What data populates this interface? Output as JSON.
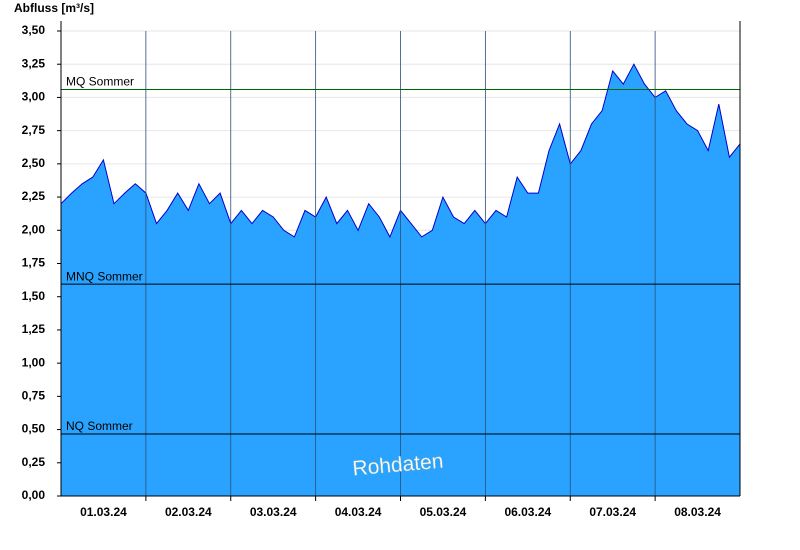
{
  "chart_data": {
    "type": "area",
    "ylabel": "Abfluss [m³/s]",
    "annotation": "Rohdaten",
    "x": [
      0,
      3,
      6,
      9,
      12,
      15,
      18,
      21,
      24,
      27,
      30,
      33,
      36,
      39,
      42,
      45,
      48,
      51,
      54,
      57,
      60,
      63,
      66,
      69,
      72,
      75,
      78,
      81,
      84,
      87,
      90,
      93,
      96,
      99,
      102,
      105,
      108,
      111,
      114,
      117,
      120,
      123,
      126,
      129,
      132,
      135,
      138,
      141,
      144,
      147,
      150,
      153,
      156,
      159,
      162,
      165,
      168,
      171,
      174,
      177,
      180,
      183,
      186,
      189,
      192
    ],
    "series": [
      {
        "name": "Abfluss",
        "color": "#29a3ff",
        "line_color": "#0000cc",
        "values": [
          2.2,
          2.28,
          2.35,
          2.4,
          2.53,
          2.2,
          2.28,
          2.35,
          2.28,
          2.05,
          2.15,
          2.28,
          2.15,
          2.35,
          2.2,
          2.28,
          2.05,
          2.15,
          2.05,
          2.15,
          2.1,
          2.0,
          1.95,
          2.15,
          2.1,
          2.25,
          2.05,
          2.15,
          2.0,
          2.2,
          2.1,
          1.95,
          2.15,
          2.05,
          1.95,
          2.0,
          2.25,
          2.1,
          2.05,
          2.15,
          2.05,
          2.15,
          2.1,
          2.4,
          2.28,
          2.28,
          2.6,
          2.8,
          2.5,
          2.6,
          2.8,
          2.9,
          3.2,
          3.1,
          3.25,
          3.1,
          3.0,
          3.05,
          2.9,
          2.8,
          2.75,
          2.6,
          2.95,
          2.55,
          2.65
        ]
      }
    ],
    "reference_lines": [
      {
        "label": "MQ Sommer",
        "value": 3.06,
        "color": "#006400"
      },
      {
        "label": "MNQ Sommer",
        "value": 1.595,
        "color": "#000000"
      },
      {
        "label": "NQ Sommer",
        "value": 0.467,
        "color": "#000000"
      }
    ],
    "xlim": [
      0,
      192
    ],
    "xticks": [
      {
        "value": 0,
        "label": "01.03.24"
      },
      {
        "value": 24,
        "label": "02.03.24"
      },
      {
        "value": 48,
        "label": "03.03.24"
      },
      {
        "value": 72,
        "label": "04.03.24"
      },
      {
        "value": 96,
        "label": "05.03.24"
      },
      {
        "value": 120,
        "label": "06.03.24"
      },
      {
        "value": 144,
        "label": "07.03.24"
      },
      {
        "value": 168,
        "label": "08.03.24"
      }
    ],
    "ylim": [
      0,
      3.5
    ],
    "yticks": [
      {
        "value": 0,
        "label": "0,00"
      },
      {
        "value": 0.25,
        "label": "0,25"
      },
      {
        "value": 0.5,
        "label": "0,50"
      },
      {
        "value": 0.75,
        "label": "0,75"
      },
      {
        "value": 1,
        "label": "1,00"
      },
      {
        "value": 1.25,
        "label": "1,25"
      },
      {
        "value": 1.5,
        "label": "1,50"
      },
      {
        "value": 1.75,
        "label": "1,75"
      },
      {
        "value": 2,
        "label": "2,00"
      },
      {
        "value": 2.25,
        "label": "2,25"
      },
      {
        "value": 2.5,
        "label": "2,50"
      },
      {
        "value": 2.75,
        "label": "2,75"
      },
      {
        "value": 3,
        "label": "3,00"
      },
      {
        "value": 3.25,
        "label": "3,25"
      },
      {
        "value": 3.5,
        "label": "3,50"
      }
    ],
    "grid": true
  }
}
